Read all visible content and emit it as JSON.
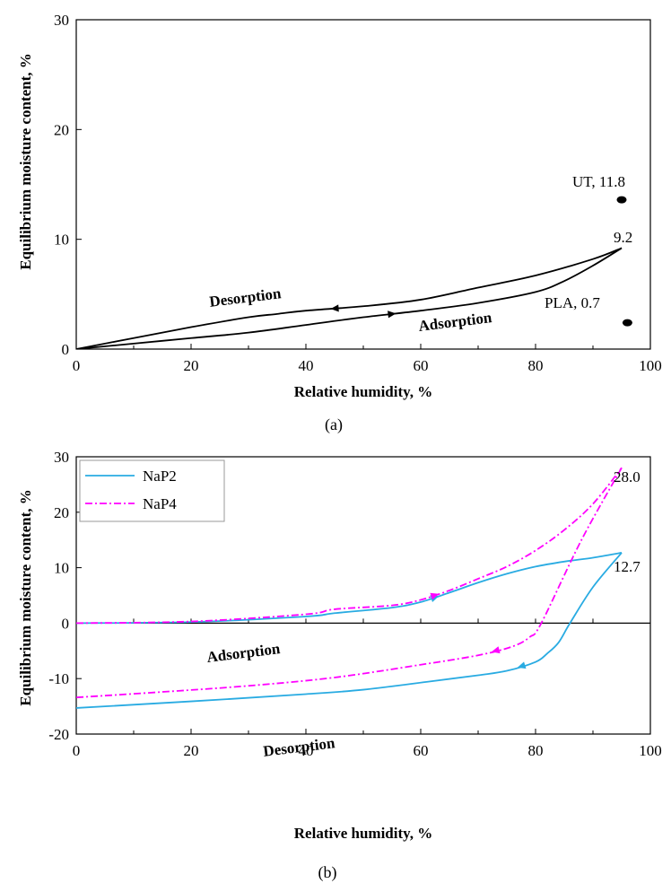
{
  "chart_data": [
    {
      "id": "a",
      "type": "line",
      "caption": "(a)",
      "xlabel": "Relative humidity, %",
      "ylabel": "Equilibrium moisture content, %",
      "xlim": [
        0,
        100
      ],
      "ylim": [
        0,
        30
      ],
      "x_ticks": [
        "0",
        "20",
        "40",
        "60",
        "80",
        "100"
      ],
      "y_ticks": [
        "0",
        "10",
        "20",
        "30"
      ],
      "series": [
        {
          "name": "Adsorption",
          "color": "#000000",
          "points": [
            [
              0,
              0
            ],
            [
              10,
              0.5
            ],
            [
              20,
              1.0
            ],
            [
              30,
              1.5
            ],
            [
              40,
              2.2
            ],
            [
              50,
              2.9
            ],
            [
              60,
              3.5
            ],
            [
              70,
              4.2
            ],
            [
              80,
              5.2
            ],
            [
              85,
              6.2
            ],
            [
              90,
              7.6
            ],
            [
              95,
              9.2
            ]
          ]
        },
        {
          "name": "Desorption",
          "color": "#000000",
          "points": [
            [
              95,
              9.2
            ],
            [
              90,
              8.2
            ],
            [
              80,
              6.7
            ],
            [
              70,
              5.6
            ],
            [
              60,
              4.5
            ],
            [
              50,
              3.9
            ],
            [
              40,
              3.5
            ],
            [
              35,
              3.2
            ],
            [
              30,
              2.9
            ],
            [
              20,
              2.0
            ],
            [
              10,
              1.0
            ],
            [
              0,
              0
            ]
          ]
        }
      ],
      "markers": [
        {
          "label": "UT, 11.8",
          "x": 95,
          "y": 13.6
        },
        {
          "label": "PLA, 0.7",
          "x": 96,
          "y": 2.4
        }
      ],
      "annotations": [
        "Desorption",
        "Adsorption",
        "9.2"
      ]
    },
    {
      "id": "b",
      "type": "line",
      "caption": "(b)",
      "xlabel": "Relative humidity, %",
      "ylabel": "Equilibrium moisture content, %",
      "xlim": [
        0,
        100
      ],
      "ylim": [
        -20,
        30
      ],
      "x_ticks": [
        "0",
        "20",
        "40",
        "60",
        "80",
        "100"
      ],
      "y_ticks": [
        "-20",
        "-10",
        "0",
        "10",
        "20",
        "30"
      ],
      "legend": [
        "NaP2",
        "NaP4"
      ],
      "series": [
        {
          "name": "NaP2 adsorption",
          "legend": "NaP2",
          "color": "#29abe2",
          "dash": "solid",
          "points": [
            [
              0,
              0
            ],
            [
              20,
              0.2
            ],
            [
              40,
              1.2
            ],
            [
              45,
              1.8
            ],
            [
              55,
              2.8
            ],
            [
              60,
              3.8
            ],
            [
              65,
              5.5
            ],
            [
              70,
              7.3
            ],
            [
              75,
              8.9
            ],
            [
              80,
              10.2
            ],
            [
              85,
              11.1
            ],
            [
              90,
              11.8
            ],
            [
              95,
              12.7
            ]
          ]
        },
        {
          "name": "NaP2 desorption",
          "legend": "NaP2",
          "color": "#29abe2",
          "dash": "solid",
          "points": [
            [
              95,
              12.7
            ],
            [
              90,
              6.5
            ],
            [
              86,
              0
            ],
            [
              84,
              -3.5
            ],
            [
              82,
              -5.5
            ],
            [
              80,
              -7.0
            ],
            [
              75,
              -8.6
            ],
            [
              70,
              -9.4
            ],
            [
              61,
              -10.6
            ],
            [
              50,
              -12.0
            ],
            [
              40,
              -12.8
            ],
            [
              20,
              -14.1
            ],
            [
              0,
              -15.3
            ]
          ]
        },
        {
          "name": "NaP4 adsorption",
          "legend": "NaP4",
          "color": "#ff00ff",
          "dash": "dashdot",
          "points": [
            [
              0,
              0
            ],
            [
              20,
              0.3
            ],
            [
              40,
              1.6
            ],
            [
              45,
              2.5
            ],
            [
              55,
              3.2
            ],
            [
              60,
              4.2
            ],
            [
              65,
              5.9
            ],
            [
              70,
              8.0
            ],
            [
              75,
              10.2
            ],
            [
              80,
              13.1
            ],
            [
              85,
              16.8
            ],
            [
              90,
              21.5
            ],
            [
              95,
              28.0
            ]
          ]
        },
        {
          "name": "NaP4 desorption",
          "legend": "NaP4",
          "color": "#ff00ff",
          "dash": "dashdot",
          "points": [
            [
              95,
              28.0
            ],
            [
              88,
              15.0
            ],
            [
              81,
              0
            ],
            [
              79,
              -2.5
            ],
            [
              76,
              -4.2
            ],
            [
              70,
              -5.8
            ],
            [
              60,
              -7.5
            ],
            [
              45,
              -9.8
            ],
            [
              30,
              -11.3
            ],
            [
              15,
              -12.4
            ],
            [
              0,
              -13.4
            ]
          ]
        }
      ],
      "annotations": [
        "Adsorption",
        "Desorption",
        "28.0",
        "12.7"
      ]
    }
  ]
}
